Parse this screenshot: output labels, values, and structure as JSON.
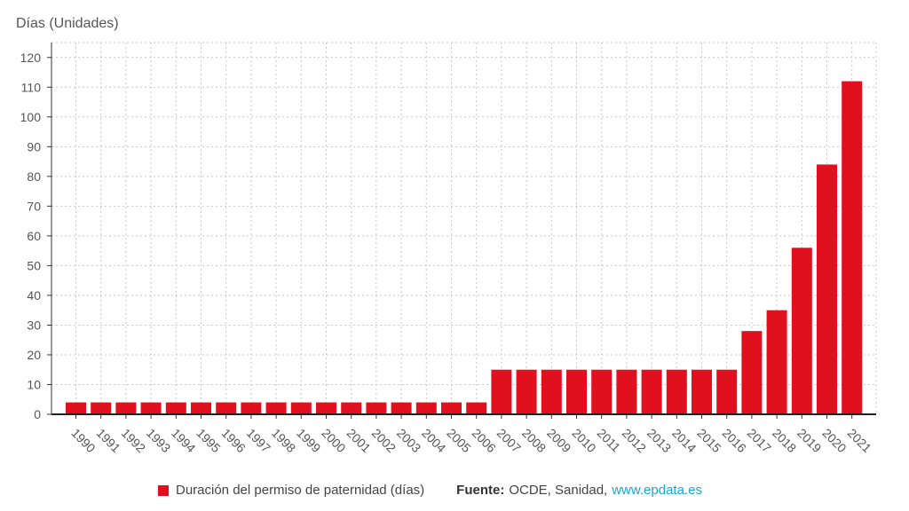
{
  "chart_data": {
    "type": "bar",
    "ylabel": "Días (Unidades)",
    "categories": [
      "1990",
      "1991",
      "1992",
      "1993",
      "1994",
      "1995",
      "1996",
      "1997",
      "1998",
      "1999",
      "2000",
      "2001",
      "2002",
      "2003",
      "2004",
      "2005",
      "2006",
      "2007",
      "2008",
      "2009",
      "2010",
      "2011",
      "2012",
      "2013",
      "2014",
      "2015",
      "2016",
      "2017",
      "2018",
      "2019",
      "2020",
      "2021"
    ],
    "series": [
      {
        "name": "Duración del permiso de paternidad (días)",
        "color": "#e0101f",
        "values": [
          4,
          4,
          4,
          4,
          4,
          4,
          4,
          4,
          4,
          4,
          4,
          4,
          4,
          4,
          4,
          4,
          4,
          15,
          15,
          15,
          15,
          15,
          15,
          15,
          15,
          15,
          15,
          28,
          35,
          56,
          84,
          112
        ]
      }
    ],
    "ylim": [
      0,
      125
    ],
    "yticks": [
      0,
      10,
      20,
      30,
      40,
      50,
      60,
      70,
      80,
      90,
      100,
      110,
      120
    ],
    "grid": true,
    "legend_position": "bottom"
  },
  "legend": {
    "series_label": "Duración del permiso de paternidad (días)",
    "swatch_color": "#e0101f"
  },
  "source": {
    "label": "Fuente:",
    "text": "OCDE, Sanidad,",
    "link": "www.epdata.es"
  }
}
